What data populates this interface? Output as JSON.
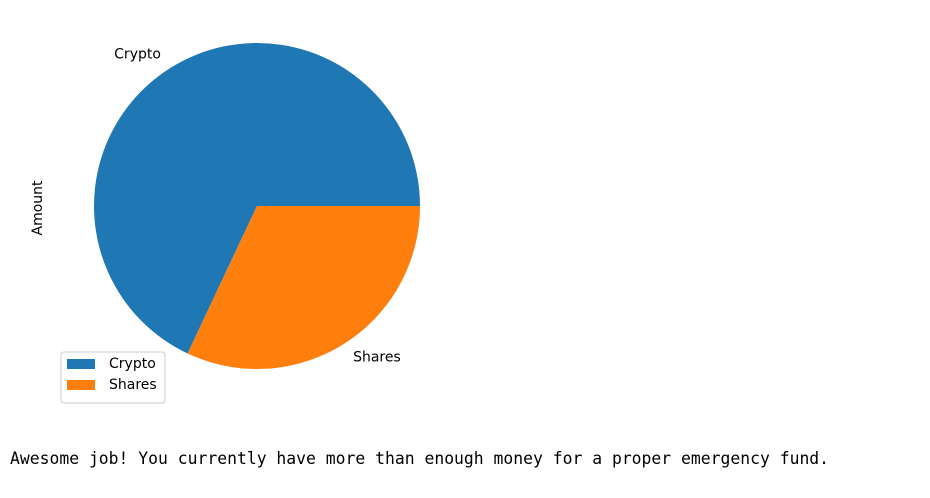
{
  "chart_data": {
    "type": "pie",
    "categories": [
      "Crypto",
      "Shares"
    ],
    "values": [
      68,
      32
    ],
    "colors": [
      "#1f77b4",
      "#ff7f0e"
    ],
    "title": "",
    "ylabel": "Amount",
    "startangle_deg": 0,
    "direction": "counterclockwise",
    "legend": {
      "placement": "lower-left",
      "entries": [
        "Crypto",
        "Shares"
      ]
    }
  },
  "output": {
    "message": "Awesome job! You currently have more than enough money for a proper emergency fund."
  }
}
